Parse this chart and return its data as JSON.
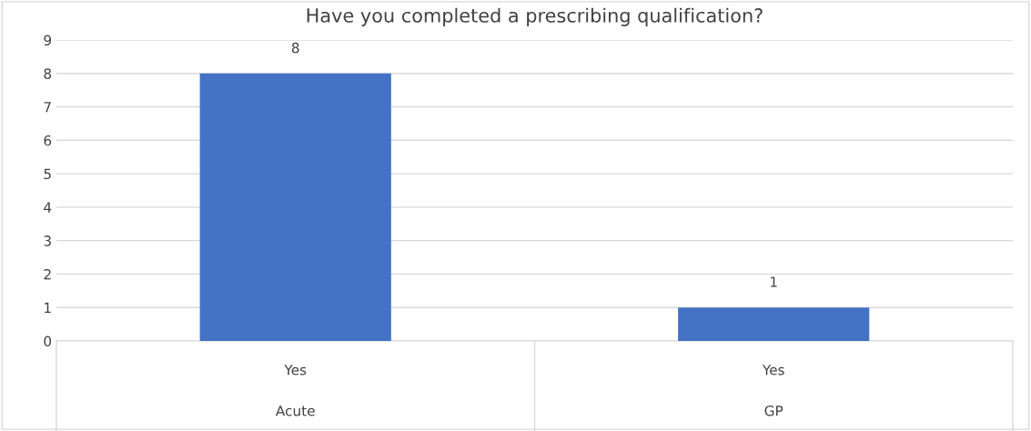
{
  "chart_data": {
    "type": "bar",
    "title": "Have you completed a prescribing qualification?",
    "categories": [
      "Yes\nAcute",
      "Yes\nGP"
    ],
    "values": [
      8,
      1
    ],
    "color": "#4472c4",
    "ylim": [
      0,
      9
    ],
    "yticks": [
      0,
      1,
      2,
      3,
      4,
      5,
      6,
      7,
      8,
      9
    ],
    "grid": "y",
    "data_labels": true,
    "legend": false
  }
}
